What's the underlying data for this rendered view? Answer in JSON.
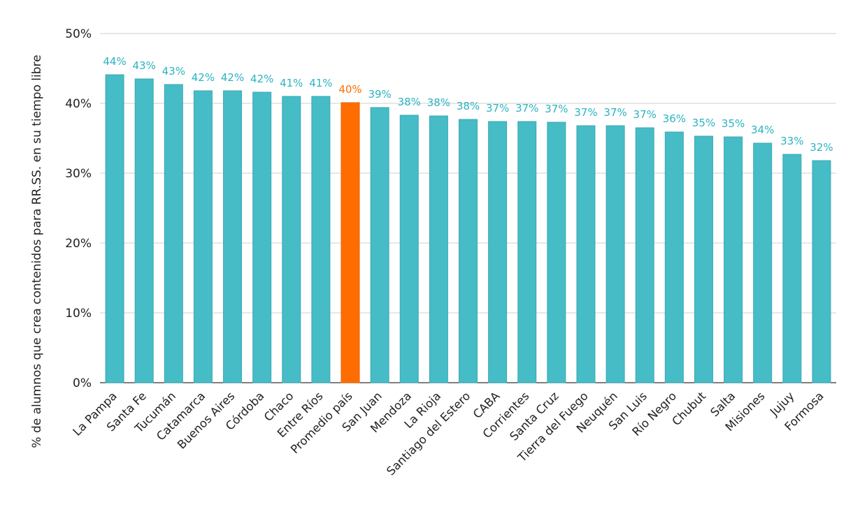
{
  "chart_data": {
    "type": "bar",
    "ylabel": "% de alumnos que crea contenidos para RR.SS. en su tiempo libre",
    "ylim": [
      0,
      50
    ],
    "yticks": [
      "0%",
      "10%",
      "20%",
      "30%",
      "40%",
      "50%"
    ],
    "grid": true,
    "categories": [
      "La Pampa",
      "Santa Fe",
      "Tucumán",
      "Catamarca",
      "Buenos Aires",
      "Córdoba",
      "Chaco",
      "Entre Ríos",
      "Promedio país",
      "San Juan",
      "Mendoza",
      "La Rioja",
      "Santiago del Estero",
      "CABA",
      "Corrientes",
      "Santa Cruz",
      "Tierra del Fuego",
      "Neuquén",
      "San Luis",
      "Río Negro",
      "Chubut",
      "Salta",
      "Misiones",
      "Jujuy",
      "Formosa"
    ],
    "values": [
      44.1,
      43.5,
      42.7,
      41.8,
      41.8,
      41.6,
      41.0,
      41.0,
      40.1,
      39.4,
      38.3,
      38.2,
      37.7,
      37.4,
      37.4,
      37.3,
      36.8,
      36.8,
      36.5,
      35.9,
      35.3,
      35.2,
      34.3,
      32.7,
      31.8
    ],
    "data_labels": [
      "44%",
      "43%",
      "43%",
      "42%",
      "42%",
      "42%",
      "41%",
      "41%",
      "40%",
      "39%",
      "38%",
      "38%",
      "38%",
      "37%",
      "37%",
      "37%",
      "37%",
      "37%",
      "37%",
      "36%",
      "35%",
      "35%",
      "34%",
      "33%",
      "32%"
    ],
    "highlight_index": 8,
    "colors": {
      "bar": "#46bcc7",
      "bar_stroke": "#3aa9b3",
      "highlight": "#ff6d00",
      "label": "#2bb3c0",
      "highlight_label": "#ff6d00"
    }
  }
}
